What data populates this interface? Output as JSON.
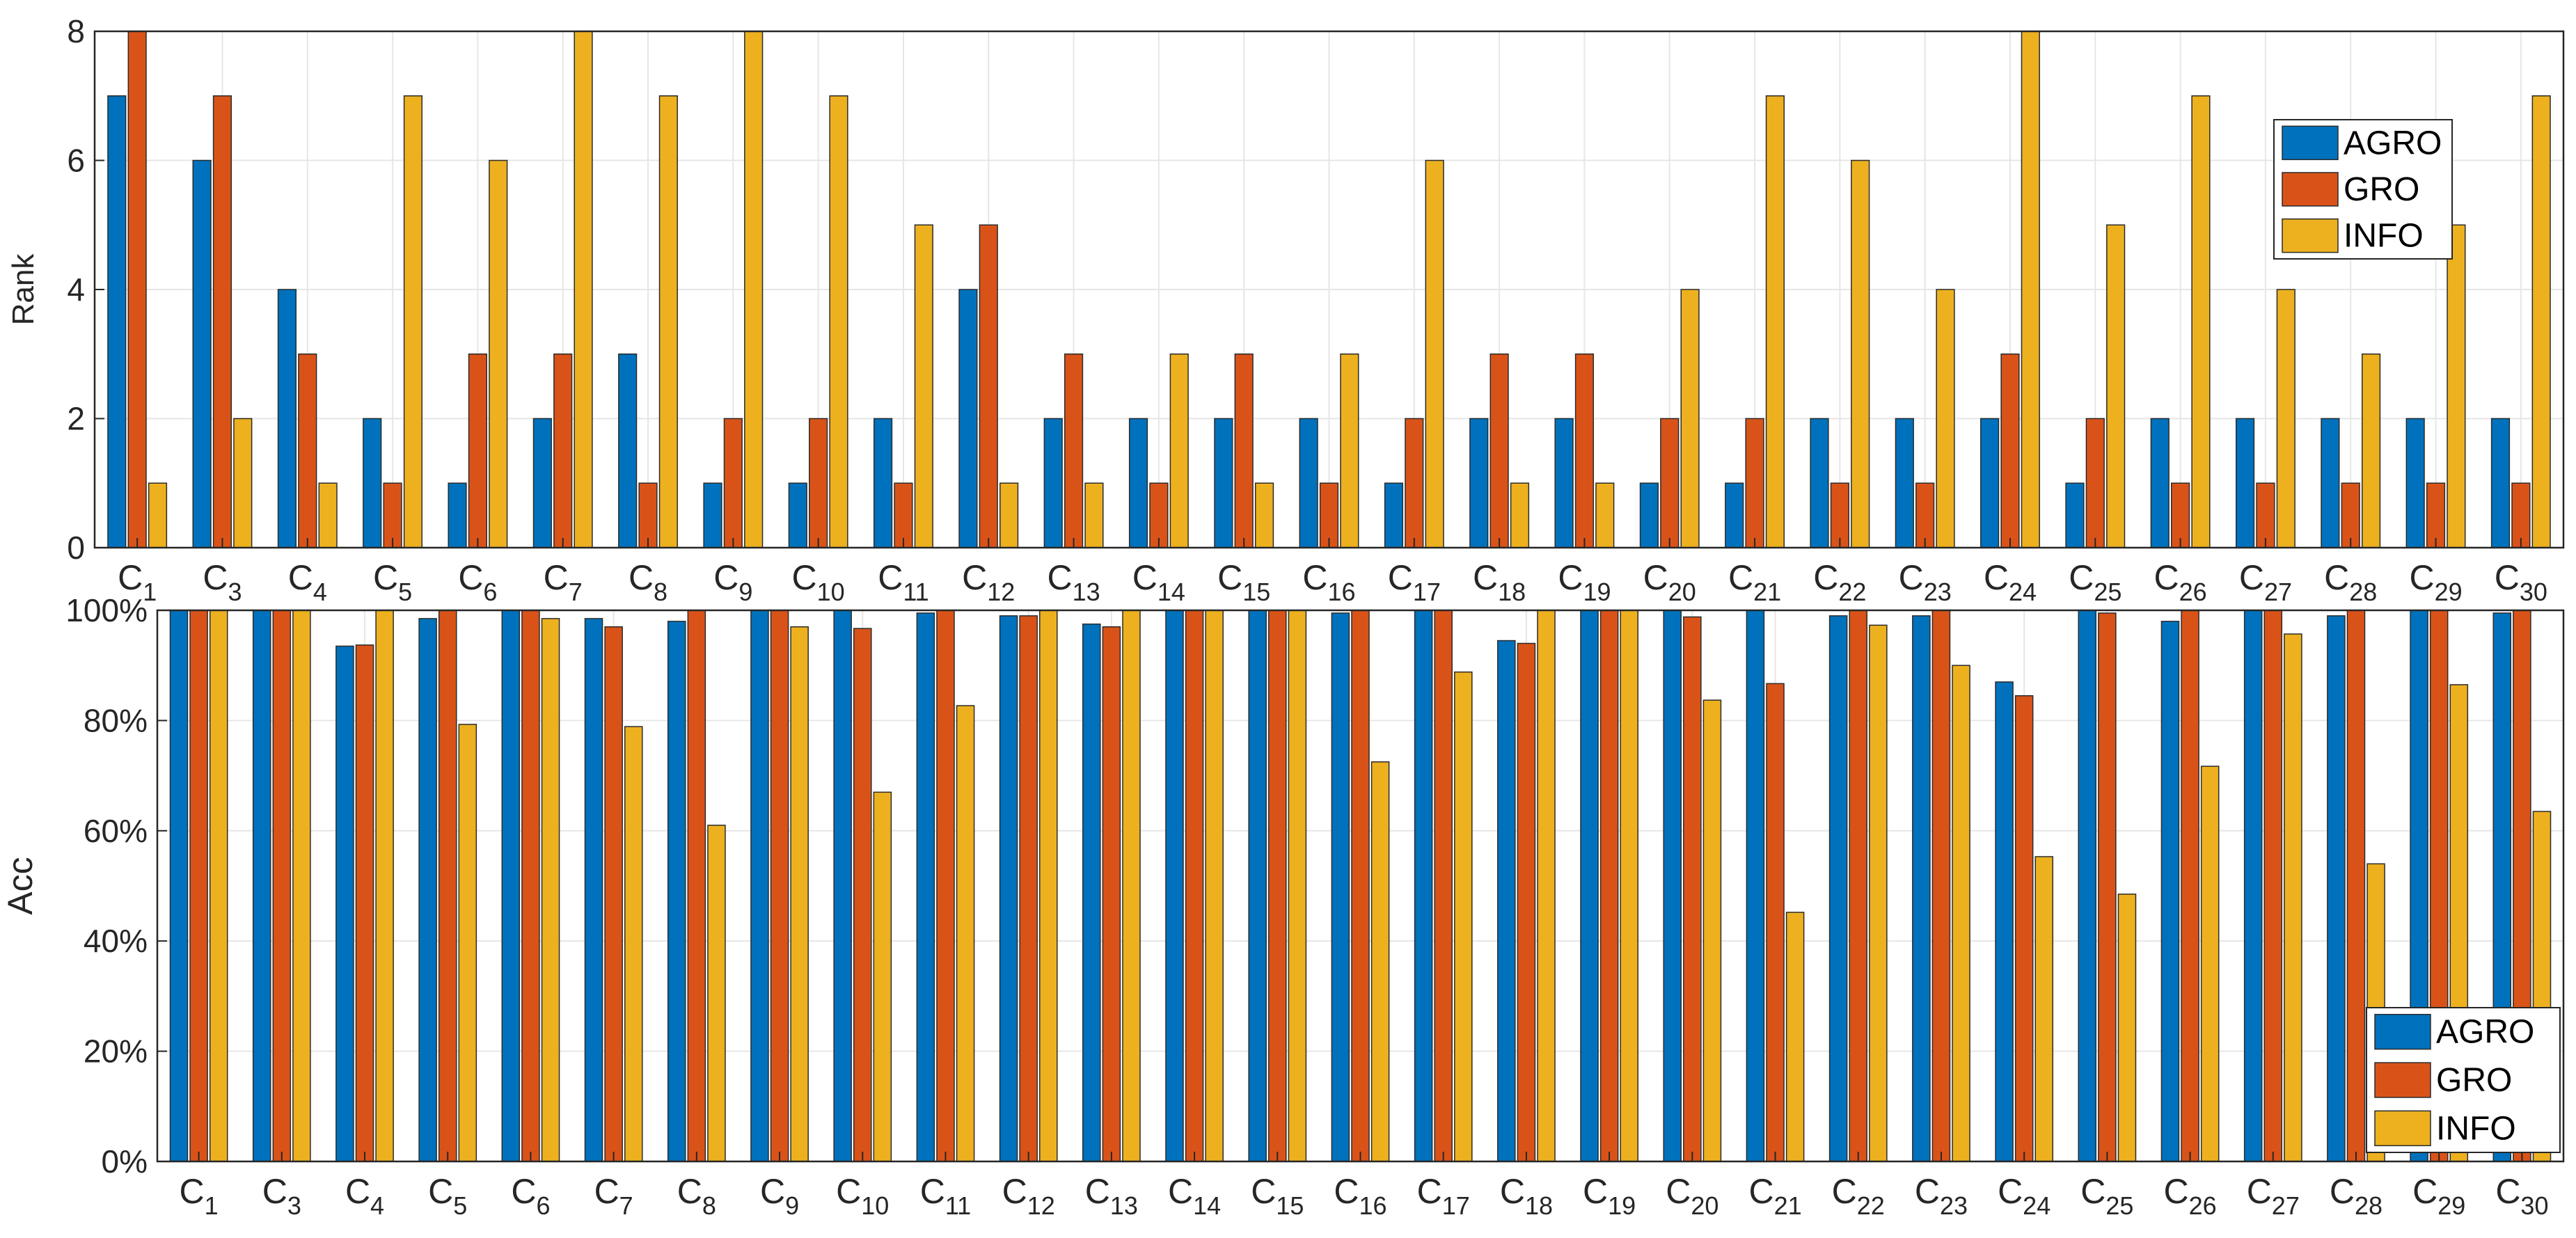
{
  "chart_data": [
    {
      "type": "bar",
      "ylabel": "Rank",
      "ylim": [
        0,
        8
      ],
      "yticks": [
        "0",
        "2",
        "4",
        "6",
        "8"
      ],
      "category_prefix": "C",
      "category_subscripts": [
        "1",
        "3",
        "4",
        "5",
        "6",
        "7",
        "8",
        "9",
        "10",
        "11",
        "12",
        "13",
        "14",
        "15",
        "16",
        "17",
        "18",
        "19",
        "20",
        "21",
        "22",
        "23",
        "24",
        "25",
        "26",
        "27",
        "28",
        "29",
        "30"
      ],
      "legend_position": "top-right",
      "series": [
        {
          "name": "AGRO",
          "color": "#0072BD",
          "values": [
            7,
            6,
            4,
            2,
            1,
            2,
            3,
            1,
            1,
            2,
            4,
            2,
            2,
            2,
            2,
            1,
            2,
            2,
            1,
            1,
            2,
            2,
            2,
            1,
            2,
            2,
            2,
            2,
            2
          ]
        },
        {
          "name": "GRO",
          "color": "#D95319",
          "values": [
            8,
            7,
            3,
            1,
            3,
            3,
            1,
            2,
            2,
            1,
            5,
            3,
            1,
            3,
            1,
            2,
            3,
            3,
            2,
            2,
            1,
            1,
            3,
            2,
            1,
            1,
            1,
            1,
            1
          ]
        },
        {
          "name": "INFO",
          "color": "#EDB120",
          "values": [
            1,
            2,
            1,
            7,
            6,
            8,
            7,
            8,
            7,
            5,
            1,
            1,
            3,
            1,
            3,
            6,
            1,
            1,
            4,
            7,
            6,
            4,
            8,
            5,
            7,
            4,
            3,
            5,
            7
          ]
        }
      ]
    },
    {
      "type": "bar",
      "ylabel": "Acc",
      "ylim": [
        0,
        100
      ],
      "yticks": [
        "0%",
        "20%",
        "40%",
        "60%",
        "80%",
        "100%"
      ],
      "category_prefix": "C",
      "category_subscripts": [
        "1",
        "3",
        "4",
        "5",
        "6",
        "7",
        "8",
        "9",
        "10",
        "11",
        "12",
        "13",
        "14",
        "15",
        "16",
        "17",
        "18",
        "19",
        "20",
        "21",
        "22",
        "23",
        "24",
        "25",
        "26",
        "27",
        "28",
        "29",
        "30"
      ],
      "legend_position": "bottom-right",
      "series": [
        {
          "name": "AGRO",
          "color": "#0072BD",
          "values": [
            100,
            100,
            93.5,
            98.5,
            100,
            98.5,
            98,
            100,
            100,
            99.5,
            99,
            97.5,
            100,
            100,
            99.5,
            100,
            94.5,
            100,
            100,
            100,
            99,
            99,
            87,
            100,
            98,
            100,
            99,
            100,
            99.5
          ]
        },
        {
          "name": "GRO",
          "color": "#D95319",
          "values": [
            100,
            100,
            93.7,
            100,
            100,
            97,
            100,
            100,
            96.7,
            100,
            99,
            97,
            100,
            100,
            100,
            100,
            94,
            100,
            98.8,
            86.7,
            100,
            100,
            84.5,
            99.5,
            100,
            100,
            100,
            100,
            100
          ]
        },
        {
          "name": "INFO",
          "color": "#EDB120",
          "values": [
            100,
            100,
            100,
            79.3,
            98.5,
            78.9,
            61,
            97,
            67,
            82.7,
            100,
            100,
            100,
            100,
            72.5,
            88.8,
            100,
            100,
            83.7,
            45.2,
            97.3,
            90,
            55.3,
            48.5,
            71.7,
            95.7,
            54,
            86.5,
            63.5
          ]
        }
      ]
    }
  ]
}
